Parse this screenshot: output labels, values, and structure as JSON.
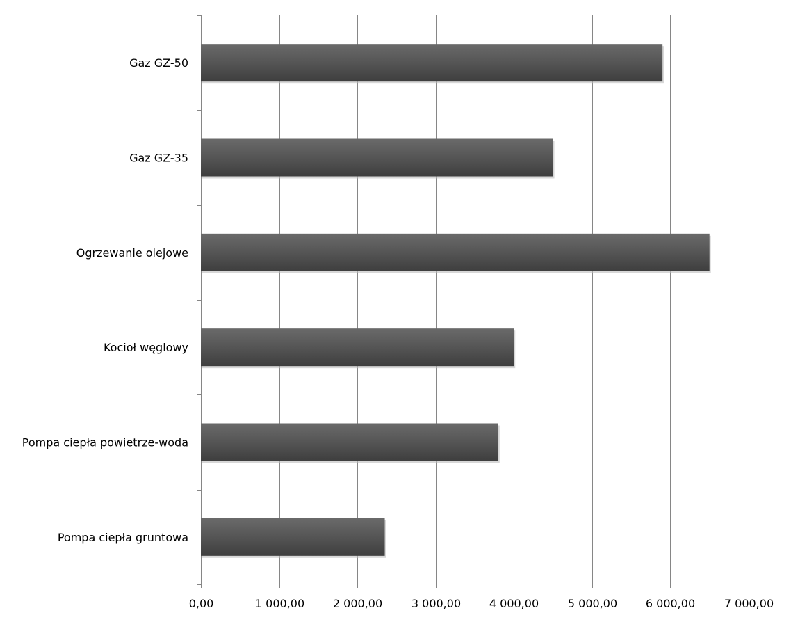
{
  "chart_data": {
    "type": "bar",
    "orientation": "horizontal",
    "title": "",
    "xlabel": "",
    "ylabel": "",
    "categories": [
      "Gaz GZ-50",
      "Gaz GZ-35",
      "Ogrzewanie olejowe",
      "Kocioł węglowy",
      "Pompa ciepła powietrze-woda",
      "Pompa ciepła gruntowa"
    ],
    "values": [
      5900,
      4500,
      6500,
      4000,
      3800,
      2350
    ],
    "xlim": [
      0,
      7000
    ],
    "xticks": [
      0,
      1000,
      2000,
      3000,
      4000,
      5000,
      6000,
      7000
    ],
    "xtick_labels": [
      "0,00",
      "1 000,00",
      "2 000,00",
      "3 000,00",
      "4 000,00",
      "5 000,00",
      "6 000,00",
      "7 000,00"
    ],
    "grid": "vertical",
    "legend": "none",
    "bar_color": "#555555",
    "grid_color": "#868686"
  }
}
